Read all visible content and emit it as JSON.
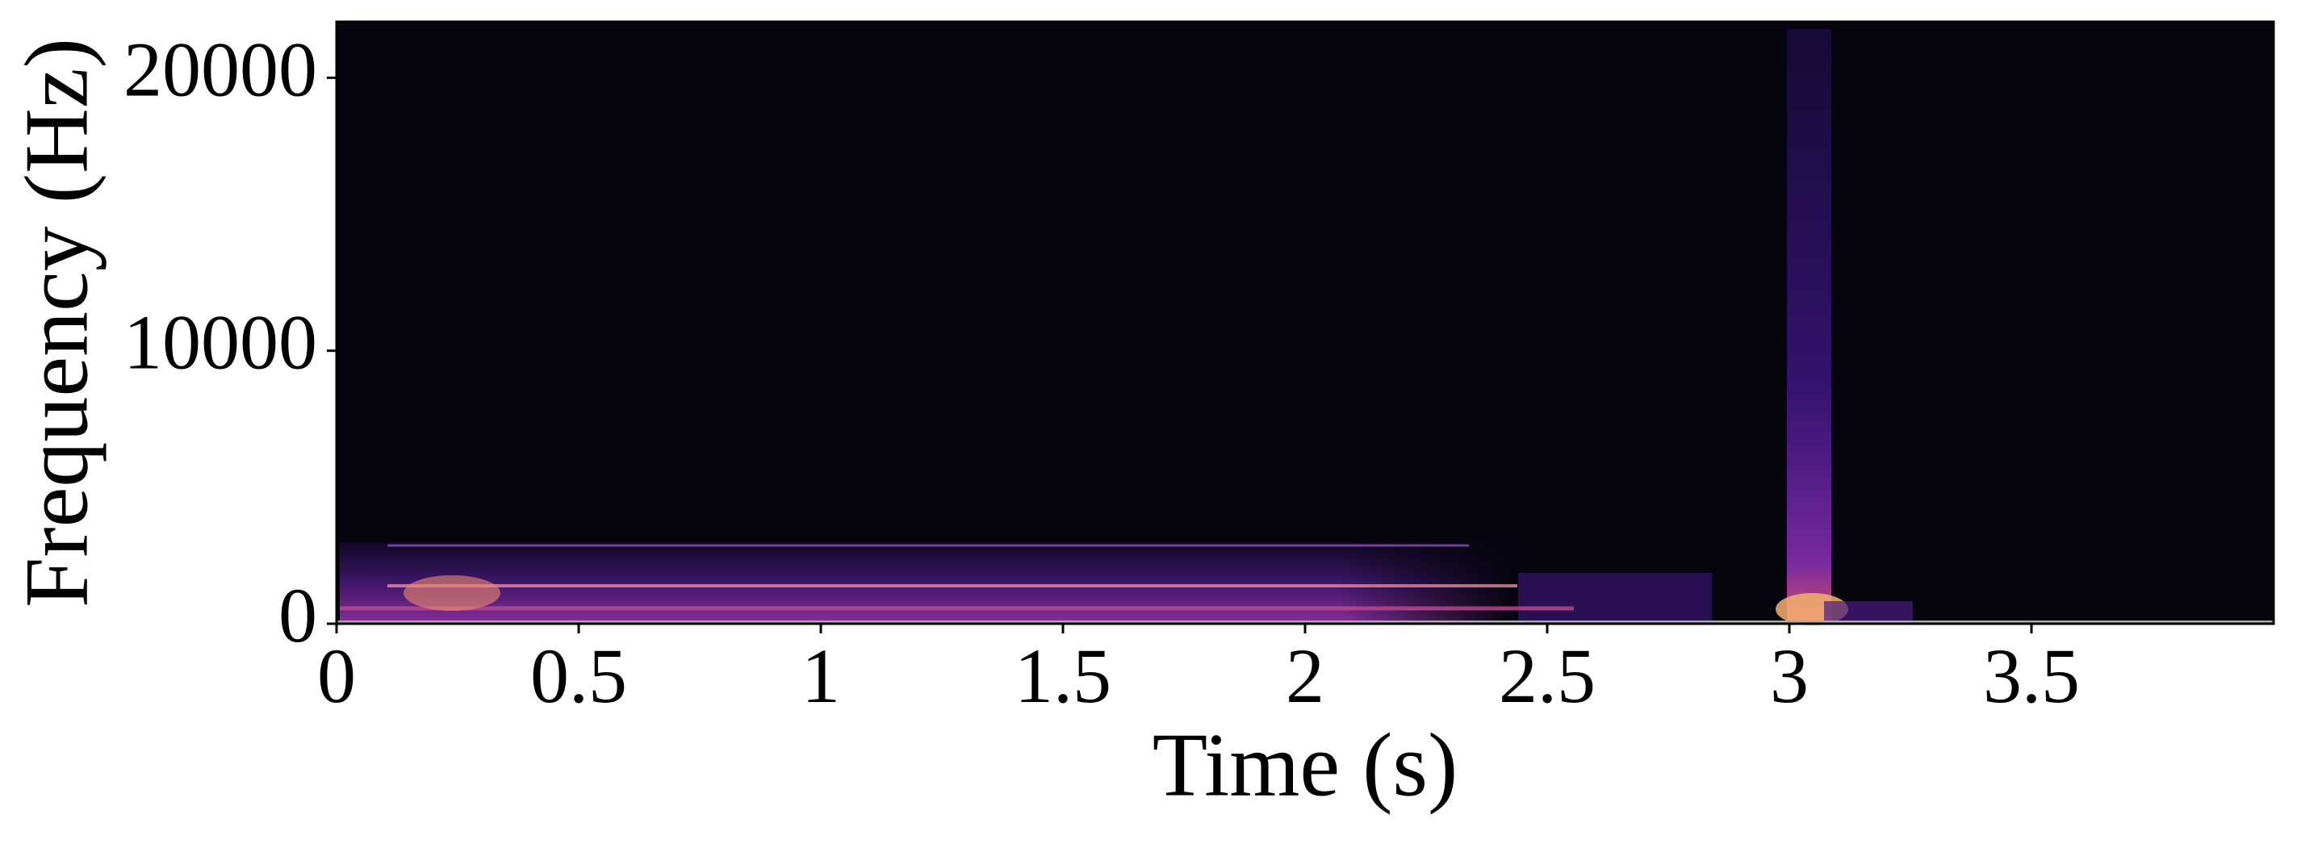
{
  "chart_data": {
    "type": "spectrogram",
    "xlabel": "Time (s)",
    "ylabel": "Frequency (Hz)",
    "xlim": [
      0,
      4
    ],
    "xticks": [
      0,
      0.5,
      1,
      1.5,
      2,
      2.5,
      3,
      3.5
    ],
    "ylim": [
      0,
      22050
    ],
    "yticks": [
      0,
      10000,
      20000
    ]
  }
}
